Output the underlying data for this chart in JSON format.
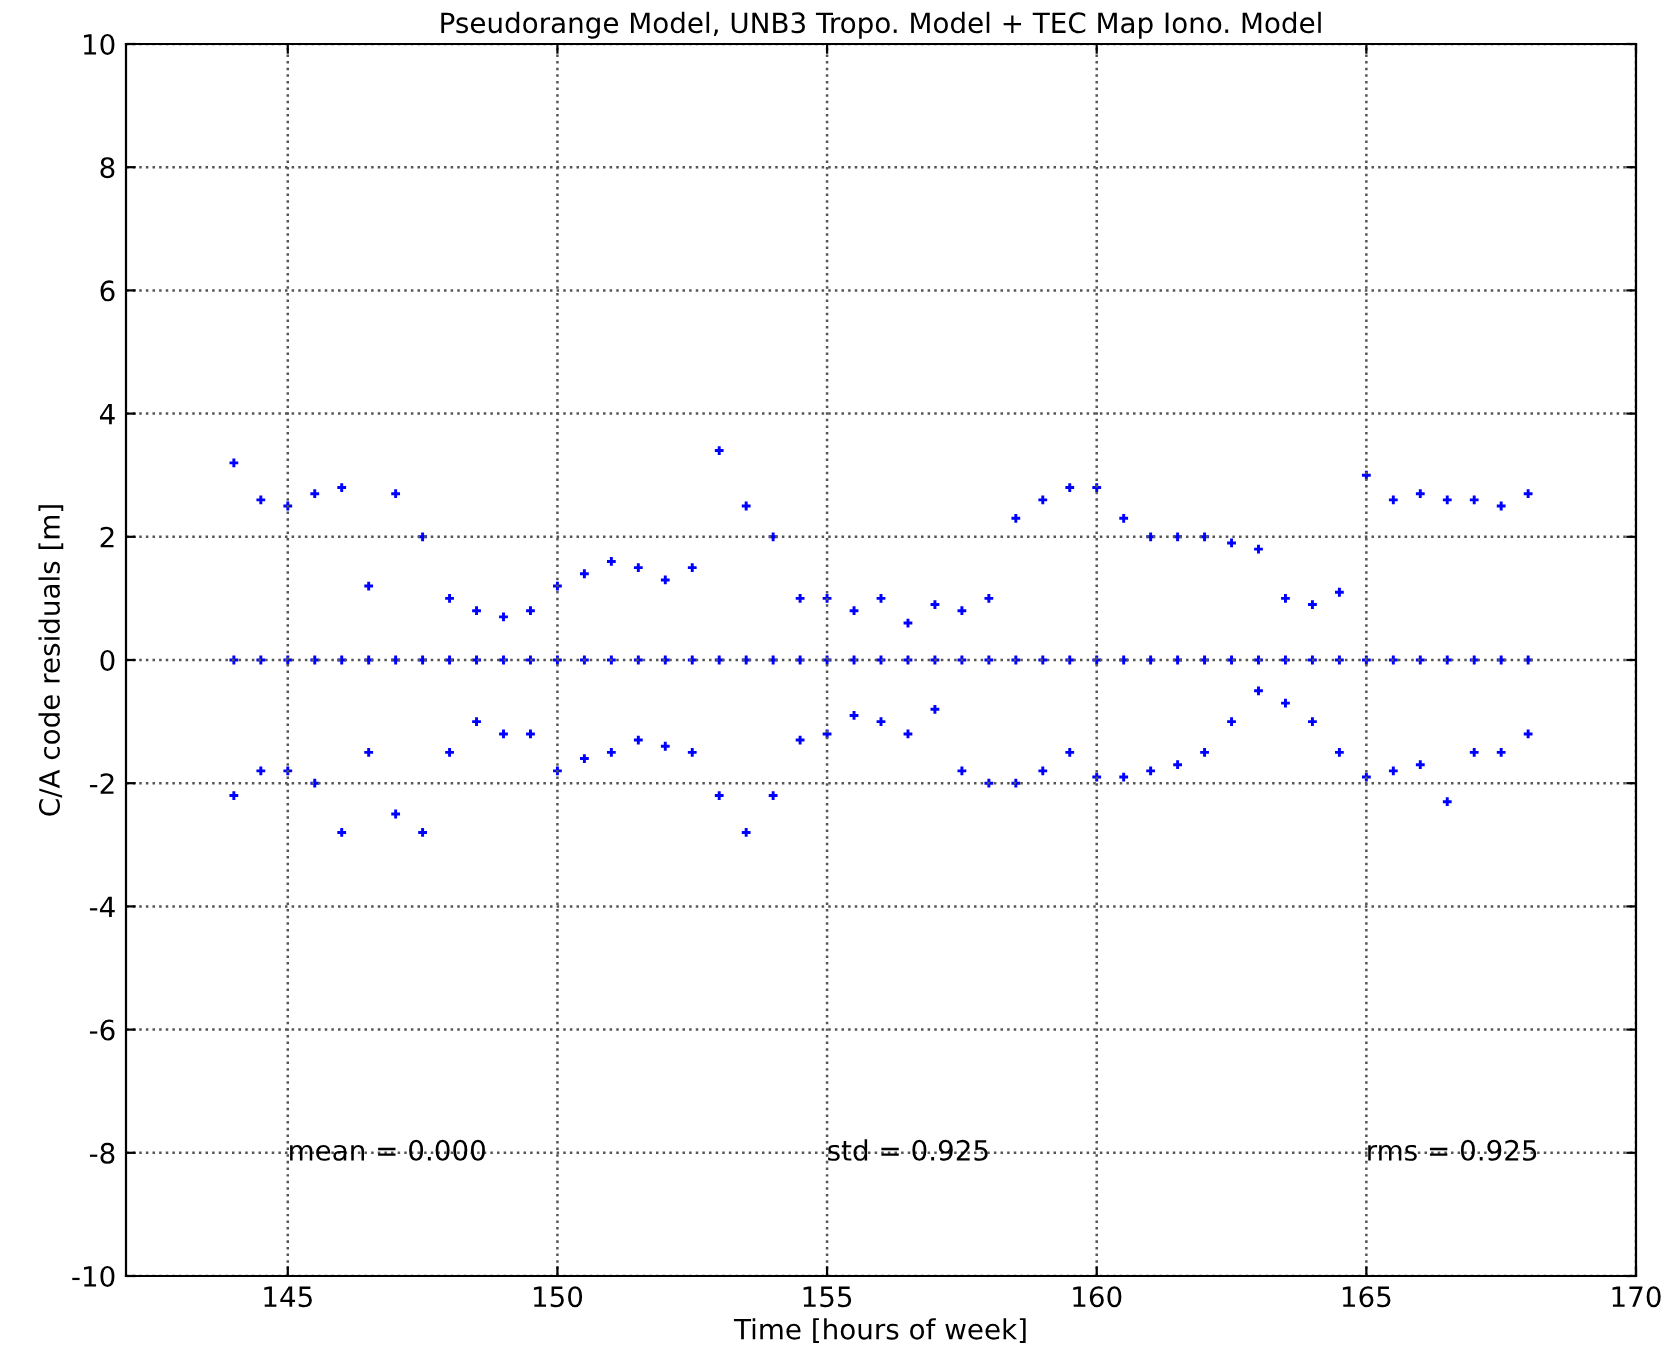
{
  "chart_data": {
    "type": "scatter",
    "title": "Pseudorange Model, UNB3 Tropo. Model + TEC Map Iono. Model",
    "xlabel": "Time [hours of week]",
    "ylabel": "C/A code residuals [m]",
    "xlim": [
      142,
      170
    ],
    "xticks": [
      145,
      150,
      155,
      160,
      165,
      170
    ],
    "ylim": [
      -10,
      10
    ],
    "yticks": [
      -10,
      -8,
      -6,
      -4,
      -2,
      0,
      2,
      4,
      6,
      8,
      10
    ],
    "grid": true,
    "marker": "cross",
    "annotations": [
      "mean = 0.000",
      "std = 0.925",
      "rms = 0.925"
    ],
    "series": [
      {
        "color": "#0000ff",
        "x": [
          144,
          144,
          144,
          144.5,
          144.5,
          144.5,
          145,
          145,
          145,
          145.5,
          145.5,
          145.5,
          146,
          146,
          146,
          146.5,
          146.5,
          146.5,
          147,
          147,
          147,
          147.5,
          147.5,
          147.5,
          148,
          148,
          148,
          148.5,
          148.5,
          148.5,
          149,
          149,
          149,
          149.5,
          149.5,
          149.5,
          150,
          150,
          150,
          150.5,
          150.5,
          150.5,
          151,
          151,
          151,
          151.5,
          151.5,
          151.5,
          152,
          152,
          152,
          152.5,
          152.5,
          152.5,
          153,
          153,
          153,
          153.5,
          153.5,
          153.5,
          154,
          154,
          154,
          154.5,
          154.5,
          154.5,
          155,
          155,
          155,
          155.5,
          155.5,
          155.5,
          156,
          156,
          156,
          156.5,
          156.5,
          156.5,
          157,
          157,
          157,
          157.5,
          157.5,
          157.5,
          158,
          158,
          158,
          158.5,
          158.5,
          158.5,
          159,
          159,
          159,
          159.5,
          159.5,
          159.5,
          160,
          160,
          160,
          160.5,
          160.5,
          160.5,
          161,
          161,
          161,
          161.5,
          161.5,
          161.5,
          162,
          162,
          162,
          162.5,
          162.5,
          162.5,
          163,
          163,
          163,
          163.5,
          163.5,
          163.5,
          164,
          164,
          164,
          164.5,
          164.5,
          164.5,
          165,
          165,
          165,
          165.5,
          165.5,
          165.5,
          166,
          166,
          166,
          166.5,
          166.5,
          166.5,
          167,
          167,
          167,
          167.5,
          167.5,
          167.5,
          168,
          168,
          168
        ],
        "values": [
          3.2,
          0,
          -2.2,
          2.6,
          0,
          -1.8,
          2.5,
          0,
          -1.8,
          2.7,
          0,
          -2.0,
          2.8,
          0,
          -2.8,
          1.2,
          0,
          -1.5,
          2.7,
          0,
          -2.5,
          2.0,
          0,
          -2.8,
          1.0,
          0,
          -1.5,
          0.8,
          0,
          -1.0,
          0.7,
          0,
          -1.2,
          0.8,
          0,
          -1.2,
          1.2,
          0,
          -1.8,
          1.4,
          0,
          -1.6,
          1.6,
          0,
          -1.5,
          1.5,
          0,
          -1.3,
          1.3,
          0,
          -1.4,
          1.5,
          0,
          -1.5,
          3.4,
          0,
          -2.2,
          2.5,
          0,
          -2.8,
          2.0,
          0,
          -2.2,
          1.0,
          0,
          -1.3,
          1.0,
          0,
          -1.2,
          0.8,
          0,
          -0.9,
          1.0,
          0,
          -1.0,
          0.6,
          0,
          -1.2,
          0.9,
          0,
          -0.8,
          0.8,
          0,
          -1.8,
          1.0,
          0,
          -2.0,
          2.3,
          0,
          -2.0,
          2.6,
          0,
          -1.8,
          2.8,
          0,
          -1.5,
          2.8,
          0,
          -1.9,
          2.3,
          0,
          -1.9,
          2.0,
          0,
          -1.8,
          2.0,
          0,
          -1.7,
          2.0,
          0,
          -1.5,
          1.9,
          0,
          -1.0,
          1.8,
          0,
          -0.5,
          1.0,
          0,
          -0.7,
          0.9,
          0,
          -1.0,
          1.1,
          0,
          -1.5,
          3.0,
          0,
          -1.9,
          2.6,
          0,
          -1.8,
          2.7,
          0,
          -1.7,
          2.6,
          0,
          -2.3,
          2.6,
          0,
          -1.5,
          2.5,
          0,
          -1.5,
          2.7,
          0,
          -1.2
        ]
      }
    ]
  }
}
